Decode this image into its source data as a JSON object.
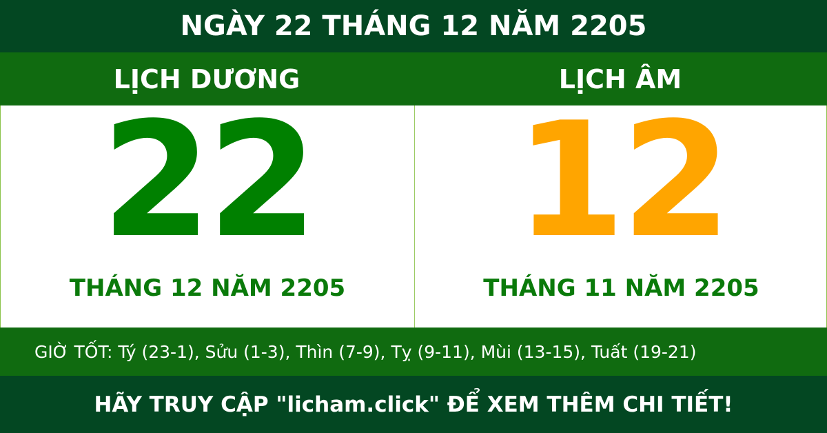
{
  "title": "NGÀY 22 THÁNG 12 NĂM 2205",
  "solar": {
    "label": "LỊCH DƯƠNG",
    "day": "22",
    "month_year": "THÁNG 12 NĂM 2205",
    "color": "#008000"
  },
  "lunar": {
    "label": "LỊCH ÂM",
    "day": "12",
    "month_year": "THÁNG 11 NĂM 2205",
    "color": "#ffa500"
  },
  "good_hours": "GIỜ TỐT: Tý (23-1), Sửu (1-3), Thìn (7-9), Tỵ (9-11), Mùi (13-15), Tuất (19-21)",
  "footer": "HÃY TRUY CẬP \"licham.click\" ĐỂ XEM THÊM CHI TIẾT!"
}
